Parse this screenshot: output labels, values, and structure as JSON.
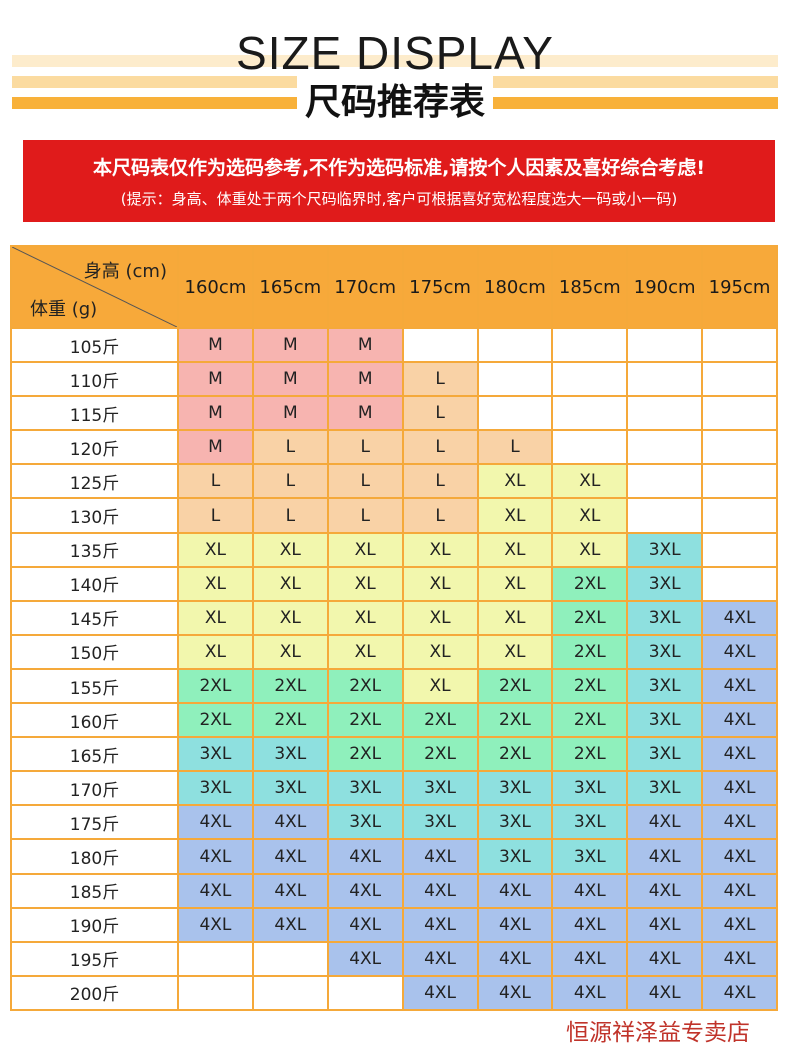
{
  "header": {
    "title_en": "SIZE DISPLAY",
    "title_cn": "尺码推荐表"
  },
  "notice": {
    "line1": "本尺码表仅作为选码参考,不作为选码标准,请按个人因素及喜好综合考虑!",
    "line2": "(提示：身高、体重处于两个尺码临界时,客户可根据喜好宽松程度选大一码或小一码)"
  },
  "colors": {
    "M": "#f7b4b0",
    "L": "#f9d2a6",
    "XL": "#f2f7ad",
    "2XL": "#8ff0bc",
    "3XL": "#8ee0df",
    "4XL": "#a9c2ec",
    "header": "#f7a93a",
    "notice": "#e01b1b"
  },
  "table": {
    "height_label": "身高 (cm)",
    "weight_label": "体重 (g)",
    "heights": [
      "160cm",
      "165cm",
      "170cm",
      "175cm",
      "180cm",
      "185cm",
      "190cm",
      "195cm"
    ],
    "rows": [
      {
        "weight": "105斤",
        "sizes": [
          "M",
          "M",
          "M",
          "",
          "",
          "",
          "",
          ""
        ]
      },
      {
        "weight": "110斤",
        "sizes": [
          "M",
          "M",
          "M",
          "L",
          "",
          "",
          "",
          ""
        ]
      },
      {
        "weight": "115斤",
        "sizes": [
          "M",
          "M",
          "M",
          "L",
          "",
          "",
          "",
          ""
        ]
      },
      {
        "weight": "120斤",
        "sizes": [
          "M",
          "L",
          "L",
          "L",
          "L",
          "",
          "",
          ""
        ]
      },
      {
        "weight": "125斤",
        "sizes": [
          "L",
          "L",
          "L",
          "L",
          "XL",
          "XL",
          "",
          ""
        ]
      },
      {
        "weight": "130斤",
        "sizes": [
          "L",
          "L",
          "L",
          "L",
          "XL",
          "XL",
          "",
          ""
        ]
      },
      {
        "weight": "135斤",
        "sizes": [
          "XL",
          "XL",
          "XL",
          "XL",
          "XL",
          "XL",
          "3XL",
          ""
        ]
      },
      {
        "weight": "140斤",
        "sizes": [
          "XL",
          "XL",
          "XL",
          "XL",
          "XL",
          "2XL",
          "3XL",
          ""
        ]
      },
      {
        "weight": "145斤",
        "sizes": [
          "XL",
          "XL",
          "XL",
          "XL",
          "XL",
          "2XL",
          "3XL",
          "4XL"
        ]
      },
      {
        "weight": "150斤",
        "sizes": [
          "XL",
          "XL",
          "XL",
          "XL",
          "XL",
          "2XL",
          "3XL",
          "4XL"
        ]
      },
      {
        "weight": "155斤",
        "sizes": [
          "2XL",
          "2XL",
          "2XL",
          "XL",
          "2XL",
          "2XL",
          "3XL",
          "4XL"
        ]
      },
      {
        "weight": "160斤",
        "sizes": [
          "2XL",
          "2XL",
          "2XL",
          "2XL",
          "2XL",
          "2XL",
          "3XL",
          "4XL"
        ]
      },
      {
        "weight": "165斤",
        "sizes": [
          "3XL",
          "3XL",
          "2XL",
          "2XL",
          "2XL",
          "2XL",
          "3XL",
          "4XL"
        ]
      },
      {
        "weight": "170斤",
        "sizes": [
          "3XL",
          "3XL",
          "3XL",
          "3XL",
          "3XL",
          "3XL",
          "3XL",
          "4XL"
        ]
      },
      {
        "weight": "175斤",
        "sizes": [
          "4XL",
          "4XL",
          "3XL",
          "3XL",
          "3XL",
          "3XL",
          "4XL",
          "4XL"
        ]
      },
      {
        "weight": "180斤",
        "sizes": [
          "4XL",
          "4XL",
          "4XL",
          "4XL",
          "3XL",
          "3XL",
          "4XL",
          "4XL"
        ]
      },
      {
        "weight": "185斤",
        "sizes": [
          "4XL",
          "4XL",
          "4XL",
          "4XL",
          "4XL",
          "4XL",
          "4XL",
          "4XL"
        ]
      },
      {
        "weight": "190斤",
        "sizes": [
          "4XL",
          "4XL",
          "4XL",
          "4XL",
          "4XL",
          "4XL",
          "4XL",
          "4XL"
        ]
      },
      {
        "weight": "195斤",
        "sizes": [
          "",
          "",
          "4XL",
          "4XL",
          "4XL",
          "4XL",
          "4XL",
          "4XL"
        ]
      },
      {
        "weight": "200斤",
        "sizes": [
          "",
          "",
          "",
          "4XL",
          "4XL",
          "4XL",
          "4XL",
          "4XL"
        ]
      }
    ]
  },
  "watermark": "恒源祥泽益专卖店"
}
